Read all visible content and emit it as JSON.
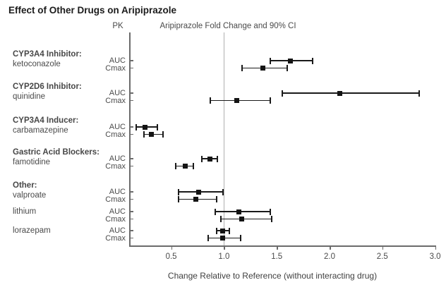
{
  "title": "Effect of Other Drugs on Aripiprazole",
  "pk_header": "PK",
  "plot_header": "Aripiprazole Fold Change and 90% CI",
  "xlabel": "Change Relative to Reference (without interacting drug)",
  "colors": {
    "marker": "#141414",
    "error_bar": "#1a1a1a",
    "axis": "#6b6b6b",
    "reference_line": "#b0b0b0",
    "text": "#4a4a4a",
    "title_text": "#1b1b1b"
  },
  "chart_data": {
    "type": "forest",
    "title": "Effect of Other Drugs on Aripiprazole",
    "xlabel": "Change Relative to Reference (without interacting drug)",
    "header": "Aripiprazole Fold Change and 90% CI",
    "pk_column": "PK",
    "x_ticks": [
      0.5,
      1.0,
      1.5,
      2.0,
      2.5,
      3.0
    ],
    "x_tick_labels": [
      "0.5",
      "1.0",
      "1.5",
      "2.0",
      "2.5",
      "3.0"
    ],
    "xlim": [
      0.1,
      3.05
    ],
    "reference_value": 1.0,
    "grid": false,
    "groups": [
      {
        "header": "CYP3A4 Inhibitor:",
        "drug": "ketoconazole",
        "rows": [
          {
            "pk": "AUC",
            "value": 1.63,
            "lo": 1.44,
            "hi": 1.84
          },
          {
            "pk": "Cmax",
            "value": 1.37,
            "lo": 1.17,
            "hi": 1.6
          }
        ]
      },
      {
        "header": "CYP2D6 Inhibitor:",
        "drug": "quinidine",
        "rows": [
          {
            "pk": "AUC",
            "value": 2.1,
            "lo": 1.55,
            "hi": 2.85
          },
          {
            "pk": "Cmax",
            "value": 1.12,
            "lo": 0.87,
            "hi": 1.44
          }
        ]
      },
      {
        "header": "CYP3A4 Inducer:",
        "drug": "carbamazepine",
        "rows": [
          {
            "pk": "AUC",
            "value": 0.25,
            "lo": 0.17,
            "hi": 0.37
          },
          {
            "pk": "Cmax",
            "value": 0.31,
            "lo": 0.24,
            "hi": 0.42
          }
        ]
      },
      {
        "header": "Gastric Acid Blockers:",
        "drug": "famotidine",
        "rows": [
          {
            "pk": "AUC",
            "value": 0.87,
            "lo": 0.79,
            "hi": 0.94
          },
          {
            "pk": "Cmax",
            "value": 0.63,
            "lo": 0.54,
            "hi": 0.71
          }
        ]
      },
      {
        "header": "Other:",
        "drug": "valproate",
        "rows": [
          {
            "pk": "AUC",
            "value": 0.76,
            "lo": 0.57,
            "hi": 0.99
          },
          {
            "pk": "Cmax",
            "value": 0.73,
            "lo": 0.57,
            "hi": 0.93
          }
        ]
      },
      {
        "header": null,
        "drug": "lithium",
        "rows": [
          {
            "pk": "AUC",
            "value": 1.14,
            "lo": 0.92,
            "hi": 1.44
          },
          {
            "pk": "Cmax",
            "value": 1.17,
            "lo": 0.97,
            "hi": 1.45
          }
        ]
      },
      {
        "header": null,
        "drug": "lorazepam",
        "rows": [
          {
            "pk": "AUC",
            "value": 0.99,
            "lo": 0.93,
            "hi": 1.05
          },
          {
            "pk": "Cmax",
            "value": 0.99,
            "lo": 0.85,
            "hi": 1.16
          }
        ]
      }
    ]
  }
}
